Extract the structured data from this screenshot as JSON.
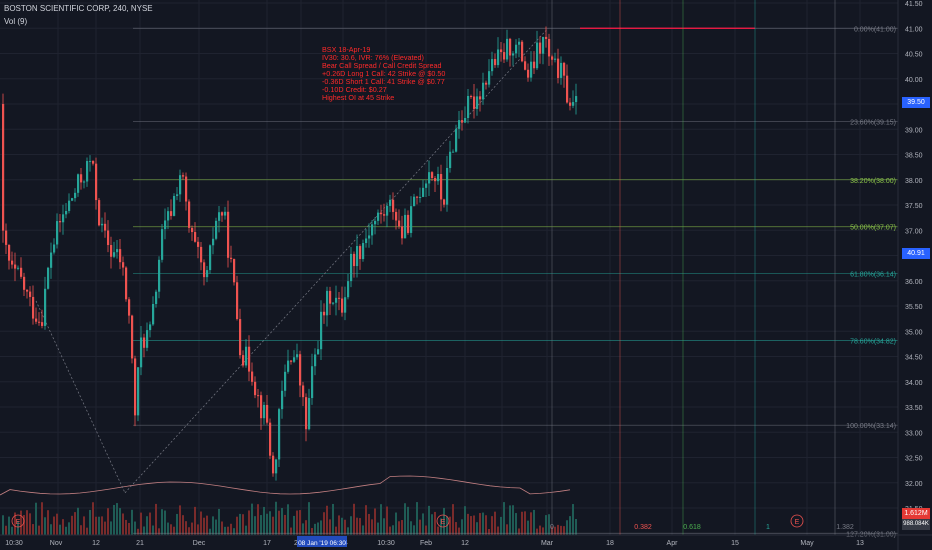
{
  "header": {
    "title": "BOSTON SCIENTIFIC CORP, 240, NYSE",
    "volume_label": "Vol (9)"
  },
  "colors": {
    "background": "#131722",
    "up": "#26a69a",
    "down": "#ef5350",
    "grid": "#1f2330",
    "annotation": "#ff2a2a",
    "fib_green": "#4caf50",
    "fib_grey": "#787b86",
    "price_tag_blue": "#2962ff",
    "price_tag_red": "#e53935",
    "price_tag_dark": "#363a45"
  },
  "annotation": {
    "lines": [
      "BSX 18-Apr-19",
      "IV30: 30.6, IVR: 76% (Elevated)",
      "Bear Call Spread / Call Credit Spread",
      "+0.26D Long 1 Call: 42 Strike @ $0.50",
      "-0.36D Short 1 Call: 41 Strike @ $0.77",
      "-0.10D Credit: $0.27",
      "Highest OI at 45 Strike"
    ]
  },
  "price_axis": {
    "ticks": [
      "41.50",
      "41.00",
      "40.50",
      "40.00",
      "39.50",
      "39.00",
      "38.50",
      "38.00",
      "37.50",
      "37.00",
      "36.50",
      "36.00",
      "35.50",
      "35.00",
      "34.50",
      "34.00",
      "33.50",
      "33.00",
      "32.50",
      "32.00",
      "31.50"
    ],
    "current_price": "39.50",
    "tag_40_91": "40.91",
    "volume_tag": "1.612M",
    "volume_tag2": "988.084K"
  },
  "time_axis": {
    "labels": [
      "10:30",
      "Nov",
      "12",
      "21",
      "Dec",
      "17",
      "2",
      "4",
      "10:30",
      "Feb",
      "12",
      "Mar",
      "18",
      "Apr",
      "15",
      "May",
      "13"
    ],
    "crosshair_label": "08 Jan '19   06:30"
  },
  "fib_levels": [
    {
      "label": "0.00%(41.00)",
      "price": 41.0,
      "color": "#787b86"
    },
    {
      "label": "23.60%(39.15)",
      "price": 39.15,
      "color": "#787b86"
    },
    {
      "label": "38.20%(38.00)",
      "price": 38.0,
      "color": "#8bc34a"
    },
    {
      "label": "50.00%(37.07)",
      "price": 37.07,
      "color": "#8bc34a"
    },
    {
      "label": "61.80%(36.14)",
      "price": 36.14,
      "color": "#26a69a"
    },
    {
      "label": "78.60%(34.82)",
      "price": 34.82,
      "color": "#26a69a"
    },
    {
      "label": "100.00%(33.14)",
      "price": 33.14,
      "color": "#787b86"
    },
    {
      "label": "127.20%(31.00)",
      "price": 31.0,
      "color": "#787b86"
    }
  ],
  "time_fib": {
    "labels": [
      "0",
      "0.382",
      "0.618",
      "1",
      "1.382"
    ]
  },
  "events": {
    "marker": "E"
  }
}
